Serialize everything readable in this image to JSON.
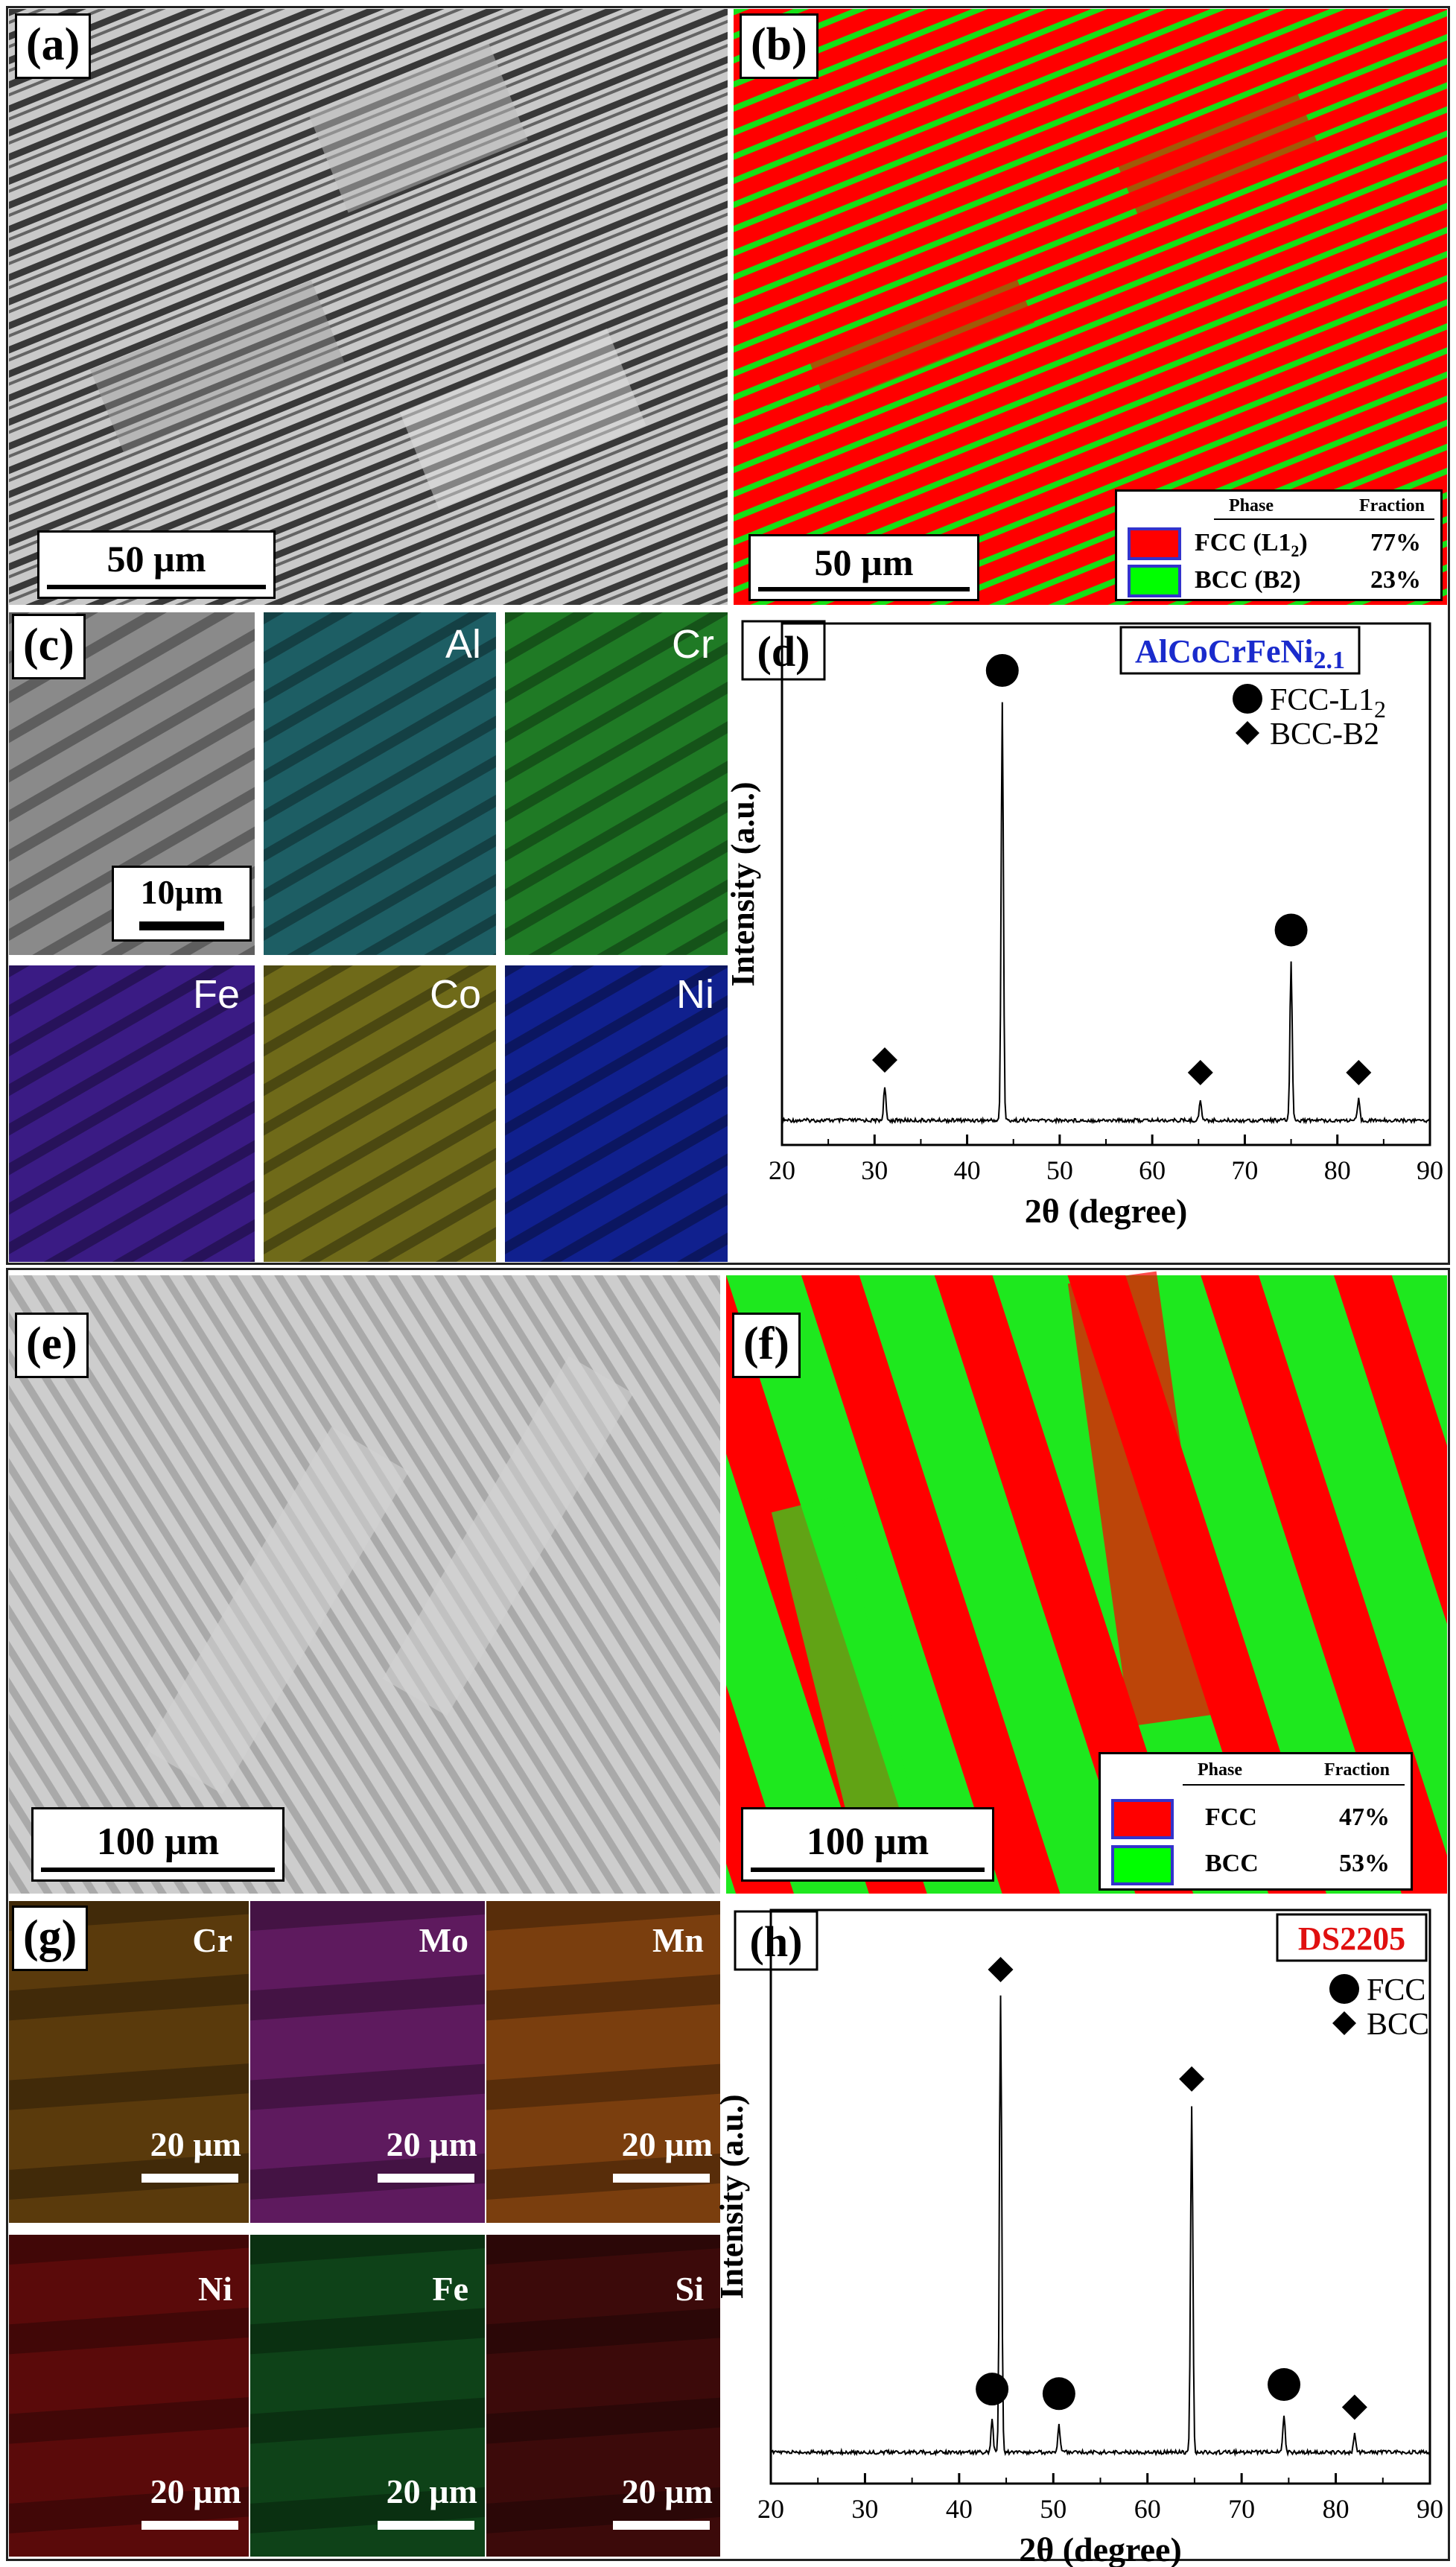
{
  "panels": {
    "a": {
      "label": "(a)",
      "scale": "50 µm"
    },
    "b": {
      "label": "(b)",
      "scale": "50 µm",
      "legend": {
        "header_phase": "Phase",
        "header_fraction": "Fraction",
        "rows": [
          {
            "phase_main": "FCC (L1",
            "phase_sub": "2",
            "phase_tail": ")",
            "fraction": "77%",
            "color": "#ff0000"
          },
          {
            "phase_main": "BCC (B2)",
            "phase_sub": "",
            "phase_tail": "",
            "fraction": "23%",
            "color": "#00ff00"
          }
        ]
      }
    },
    "c": {
      "label": "(c)",
      "scale": "10µm",
      "maps": [
        {
          "element": "",
          "color": "#8a8a8a"
        },
        {
          "element": "Al",
          "color": "#1d5e64"
        },
        {
          "element": "Cr",
          "color": "#1f7a25"
        },
        {
          "element": "Fe",
          "color": "#3a1b84"
        },
        {
          "element": "Co",
          "color": "#6f6a19"
        },
        {
          "element": "Ni",
          "color": "#10208e"
        }
      ]
    },
    "d": {
      "label": "(d)",
      "alloy_main": "AlCoCrFeNi",
      "alloy_sub": "2.1",
      "legend": [
        {
          "marker": "circle",
          "main": "FCC-L1",
          "sub": "2"
        },
        {
          "marker": "diamond",
          "main": "BCC-B2",
          "sub": ""
        }
      ]
    },
    "e": {
      "label": "(e)",
      "scale": "100 µm"
    },
    "f": {
      "label": "(f)",
      "scale": "100 µm",
      "legend": {
        "header_phase": "Phase",
        "header_fraction": "Fraction",
        "rows": [
          {
            "phase_main": "FCC",
            "phase_sub": "",
            "phase_tail": "",
            "fraction": "47%",
            "color": "#ff0000"
          },
          {
            "phase_main": "BCC",
            "phase_sub": "",
            "phase_tail": "",
            "fraction": "53%",
            "color": "#00ff00"
          }
        ]
      }
    },
    "g": {
      "label": "(g)",
      "maps": [
        {
          "element": "Cr",
          "scale": "20 µm",
          "color": "#5a3a0c"
        },
        {
          "element": "Mo",
          "scale": "20 µm",
          "color": "#5e1a5e"
        },
        {
          "element": "Mn",
          "scale": "20 µm",
          "color": "#7a3e0e"
        },
        {
          "element": "Ni",
          "scale": "20 µm",
          "color": "#5a0a0a"
        },
        {
          "element": "Fe",
          "scale": "20 µm",
          "color": "#0e4218"
        },
        {
          "element": "Si",
          "scale": "20 µm",
          "color": "#3c0a0a"
        }
      ]
    },
    "h": {
      "label": "(h)",
      "alloy_main": "DS2205",
      "alloy_sub": "",
      "legend": [
        {
          "marker": "circle",
          "main": "FCC",
          "sub": ""
        },
        {
          "marker": "diamond",
          "main": "BCC",
          "sub": ""
        }
      ]
    }
  },
  "chart_data": [
    {
      "type": "line",
      "panel": "d",
      "xlabel": "2θ (degree)",
      "ylabel": "Intensity (a.u.)",
      "xlim": [
        20,
        90
      ],
      "xticks": [
        20,
        30,
        40,
        50,
        60,
        70,
        80,
        90
      ],
      "peaks": [
        {
          "x": 31.1,
          "height": 0.08,
          "phase": "BCC"
        },
        {
          "x": 43.8,
          "height": 1.0,
          "phase": "FCC"
        },
        {
          "x": 65.2,
          "height": 0.05,
          "phase": "BCC"
        },
        {
          "x": 75.0,
          "height": 0.38,
          "phase": "FCC"
        },
        {
          "x": 82.3,
          "height": 0.05,
          "phase": "BCC"
        }
      ]
    },
    {
      "type": "line",
      "panel": "h",
      "xlabel": "2θ (degree)",
      "ylabel": "Intensity (a.u.)",
      "xlim": [
        20,
        90
      ],
      "xticks": [
        20,
        30,
        40,
        50,
        60,
        70,
        80,
        90
      ],
      "peaks": [
        {
          "x": 43.5,
          "height": 0.07,
          "phase": "FCC"
        },
        {
          "x": 44.4,
          "height": 1.0,
          "phase": "BCC"
        },
        {
          "x": 50.6,
          "height": 0.06,
          "phase": "FCC"
        },
        {
          "x": 64.7,
          "height": 0.76,
          "phase": "BCC"
        },
        {
          "x": 74.5,
          "height": 0.08,
          "phase": "FCC"
        },
        {
          "x": 82.0,
          "height": 0.04,
          "phase": "BCC"
        }
      ]
    }
  ]
}
